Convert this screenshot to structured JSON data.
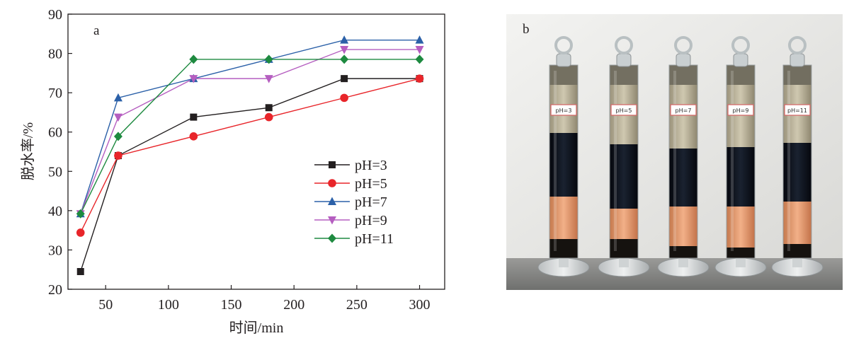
{
  "chart_data": {
    "type": "line",
    "panel_label": "a",
    "title": "",
    "xlabel": "时间/min",
    "ylabel": "脱水率/%",
    "xlim": [
      20,
      320
    ],
    "ylim": [
      20,
      90
    ],
    "xticks": [
      50,
      100,
      150,
      200,
      250,
      300
    ],
    "yticks": [
      20,
      30,
      40,
      50,
      60,
      70,
      80,
      90
    ],
    "grid": false,
    "legend_position": "lower-right",
    "x": [
      30,
      60,
      120,
      180,
      240,
      300
    ],
    "series": [
      {
        "name": "pH=3",
        "color": "#231f20",
        "marker": "square",
        "values": [
          24.5,
          54,
          63.8,
          66.2,
          73.6,
          73.6
        ]
      },
      {
        "name": "pH=5",
        "color": "#e8252a",
        "marker": "circle",
        "values": [
          34.4,
          54,
          58.9,
          63.8,
          68.7,
          73.6
        ]
      },
      {
        "name": "pH=7",
        "color": "#2b60a8",
        "marker": "triangle-up",
        "values": [
          39.2,
          68.7,
          73.6,
          78.5,
          83.4,
          83.4
        ]
      },
      {
        "name": "pH=9",
        "color": "#b55ec0",
        "marker": "triangle-down",
        "values": [
          39.2,
          63.8,
          73.6,
          73.6,
          81,
          81
        ]
      },
      {
        "name": "pH=11",
        "color": "#1e8a40",
        "marker": "diamond",
        "values": [
          39.2,
          58.9,
          78.5,
          78.5,
          78.5,
          78.5
        ]
      }
    ]
  },
  "photo": {
    "panel_label": "b",
    "cylinders": [
      {
        "label": "pH=3"
      },
      {
        "label": "pH=5"
      },
      {
        "label": "pH=7"
      },
      {
        "label": "pH=9"
      },
      {
        "label": "pH=11"
      }
    ]
  }
}
